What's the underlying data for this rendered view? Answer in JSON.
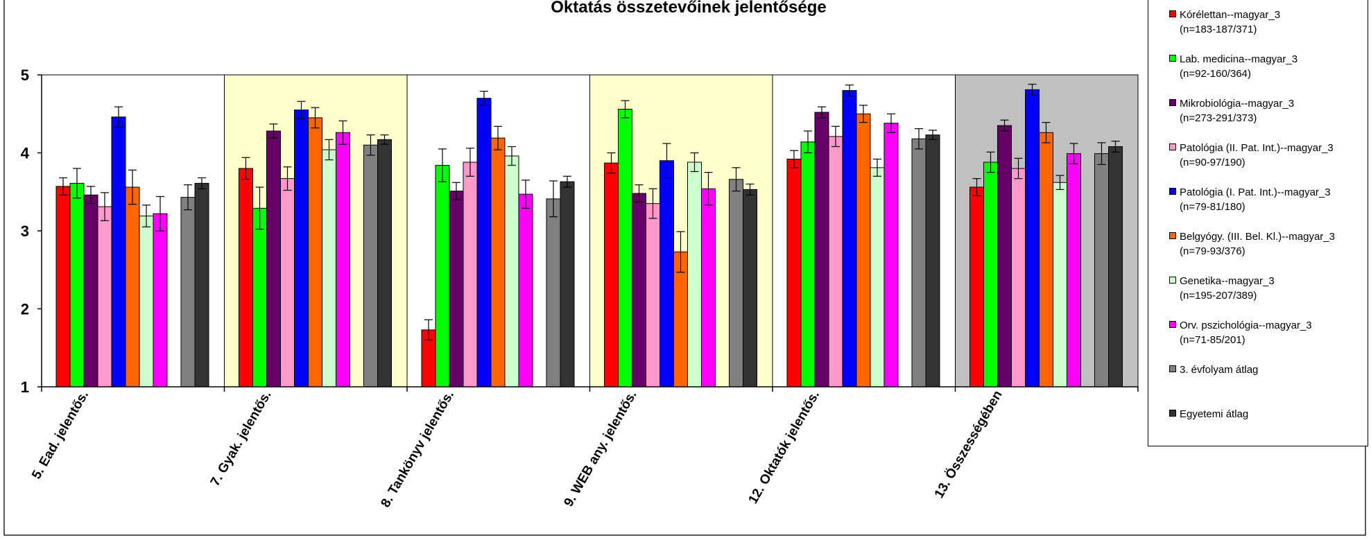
{
  "chart_data": {
    "type": "bar",
    "title": "Oktatás összetevőinek jelentősége",
    "xlabel": "",
    "ylabel": "",
    "ylim": [
      1,
      5
    ],
    "yticks": [
      1,
      2,
      3,
      4,
      5
    ],
    "grid": false,
    "legend_position": "right",
    "error_bars": true,
    "categories": [
      "5. Ead. jelentős.",
      "7. Gyak. jelentős.",
      "8. Tankönyv jelentős.",
      "9. WEB any. jelentős.",
      "12. Oktatók jelentős.",
      "13. Összességében"
    ],
    "category_backgrounds": [
      "#ffffff",
      "#ffffcc",
      "#ffffff",
      "#ffffcc",
      "#ffffff",
      "#c0c0c0"
    ],
    "series": [
      {
        "name": "Kórélettan--magyar_3",
        "n": "(n=183-187/371)",
        "color": "#ff0000",
        "values": [
          3.57,
          3.8,
          1.73,
          3.87,
          3.92,
          3.56
        ],
        "errors": [
          0.11,
          0.14,
          0.13,
          0.13,
          0.11,
          0.11
        ]
      },
      {
        "name": "Lab. medicina--magyar_3",
        "n": "(n=92-160/364)",
        "color": "#00ff00",
        "values": [
          3.61,
          3.29,
          3.84,
          4.56,
          4.14,
          3.88
        ],
        "errors": [
          0.19,
          0.27,
          0.21,
          0.11,
          0.14,
          0.13
        ]
      },
      {
        "name": "Mikrobiológia--magyar_3",
        "n": "(n=273-291/373)",
        "color": "#660066",
        "values": [
          3.46,
          4.28,
          3.51,
          3.48,
          4.52,
          4.35
        ],
        "errors": [
          0.11,
          0.09,
          0.11,
          0.11,
          0.07,
          0.07
        ]
      },
      {
        "name": "Patológia (II. Pat. Int.)--magyar_3",
        "n": "(n=90-97/190)",
        "color": "#ff99cc",
        "values": [
          3.31,
          3.67,
          3.88,
          3.35,
          4.21,
          3.8
        ],
        "errors": [
          0.18,
          0.15,
          0.18,
          0.19,
          0.13,
          0.13
        ]
      },
      {
        "name": "Patológia (I. Pat. Int.)--magyar_3",
        "n": "(n=79-81/180)",
        "color": "#0000ff",
        "values": [
          4.46,
          4.55,
          4.7,
          3.9,
          4.8,
          4.81
        ],
        "errors": [
          0.13,
          0.11,
          0.09,
          0.22,
          0.07,
          0.07
        ]
      },
      {
        "name": "Belgyógy. (III. Bel. Kl.)--magyar_3",
        "n": "(n=79-93/376)",
        "color": "#ff6600",
        "values": [
          3.56,
          4.45,
          4.19,
          2.73,
          4.5,
          4.26
        ],
        "errors": [
          0.22,
          0.13,
          0.15,
          0.26,
          0.11,
          0.13
        ]
      },
      {
        "name": "Genetika--magyar_3",
        "n": "(n=195-207/389)",
        "color": "#ccffcc",
        "values": [
          3.19,
          4.04,
          3.96,
          3.88,
          3.81,
          3.62
        ],
        "errors": [
          0.14,
          0.13,
          0.12,
          0.12,
          0.11,
          0.09
        ]
      },
      {
        "name": "Orv. pszichológia--magyar_3",
        "n": "(n=71-85/201)",
        "color": "#ff00ff",
        "values": [
          3.22,
          4.26,
          3.47,
          3.54,
          4.38,
          3.99
        ],
        "errors": [
          0.22,
          0.15,
          0.18,
          0.21,
          0.12,
          0.13
        ]
      },
      {
        "name": "3. évfolyam átlag",
        "n": "",
        "color": "#808080",
        "values": [
          3.43,
          4.1,
          3.41,
          3.66,
          4.18,
          3.99
        ],
        "errors": [
          0.16,
          0.13,
          0.23,
          0.15,
          0.13,
          0.14
        ]
      },
      {
        "name": "Egyetemi átlag",
        "n": "",
        "color": "#333333",
        "values": [
          3.61,
          4.17,
          3.63,
          3.53,
          4.23,
          4.08
        ],
        "errors": [
          0.07,
          0.06,
          0.07,
          0.07,
          0.06,
          0.07
        ]
      }
    ]
  }
}
